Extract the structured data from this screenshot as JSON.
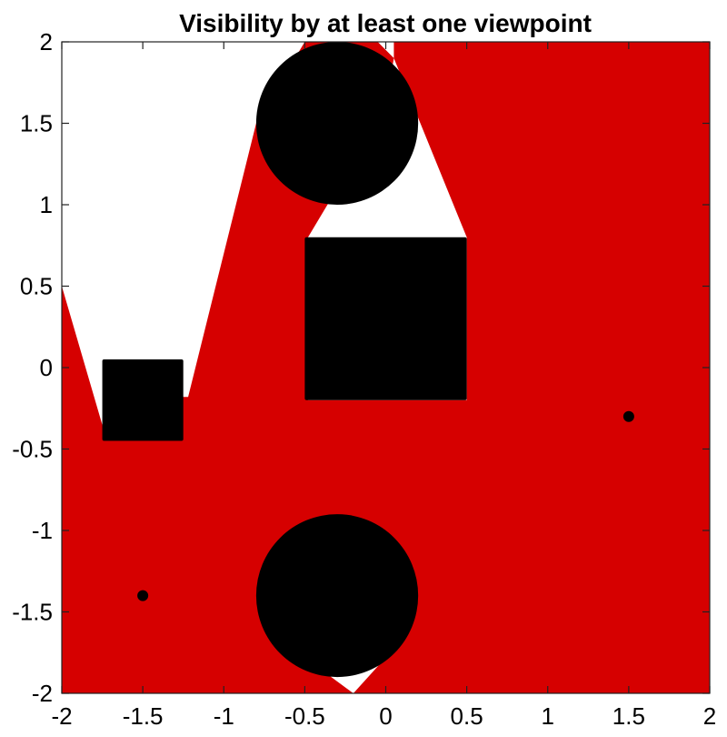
{
  "chart_data": {
    "type": "area",
    "title": "Visibility by at least one viewpoint",
    "xlabel": "",
    "ylabel": "",
    "xlim": [
      -2,
      2
    ],
    "ylim": [
      -2,
      2
    ],
    "x_ticks": [
      -2,
      -1.5,
      -1,
      -0.5,
      0,
      0.5,
      1,
      1.5,
      2
    ],
    "y_ticks": [
      -2,
      -1.5,
      -1,
      -0.5,
      0,
      0.5,
      1,
      1.5,
      2
    ],
    "x_tick_labels": [
      "-2",
      "-1.5",
      "-1",
      "-0.5",
      "0",
      "0.5",
      "1",
      "1.5",
      "2"
    ],
    "y_tick_labels": [
      "-2",
      "-1.5",
      "-1",
      "-0.5",
      "0",
      "0.5",
      "1",
      "1.5",
      "2"
    ],
    "grid": false,
    "visible_color": "#d60000",
    "hidden_color": "#ffffff",
    "obstacle_color": "#000000",
    "visible_region": [
      [
        -2,
        0.5
      ],
      [
        -1.73,
        -0.42
      ],
      [
        -1.3,
        -0.42
      ],
      [
        -1.3,
        -0.18
      ],
      [
        -1.22,
        -0.18
      ],
      [
        -0.8,
        1.5
      ],
      [
        -0.5,
        2
      ],
      [
        -0.05,
        2
      ],
      [
        0.05,
        1.9
      ],
      [
        -0.08,
        1.15
      ],
      [
        -0.3,
        1.1
      ],
      [
        -0.48,
        0.8
      ],
      [
        -0.48,
        -0.2
      ],
      [
        0.5,
        -0.2
      ],
      [
        0.5,
        0.8
      ],
      [
        0.05,
        1.9
      ],
      [
        0.05,
        2
      ],
      [
        2,
        2
      ],
      [
        2,
        -2
      ],
      [
        -0.2,
        -2
      ],
      [
        0.0,
        -1.78
      ],
      [
        -0.5,
        -1.78
      ],
      [
        -0.2,
        -2
      ],
      [
        -2,
        -2
      ]
    ],
    "obstacles": [
      {
        "shape": "circle",
        "center": [
          -0.3,
          1.5
        ],
        "radius": 0.5
      },
      {
        "shape": "square",
        "x": [
          -0.5,
          0.5
        ],
        "y": [
          -0.2,
          0.8
        ]
      },
      {
        "shape": "square",
        "x": [
          -1.75,
          -1.25
        ],
        "y": [
          -0.45,
          0.05
        ]
      },
      {
        "shape": "circle",
        "center": [
          -0.3,
          -1.4
        ],
        "radius": 0.5
      }
    ],
    "viewpoints": [
      {
        "x": 1.5,
        "y": -0.3
      },
      {
        "x": -1.5,
        "y": -1.4
      }
    ]
  }
}
